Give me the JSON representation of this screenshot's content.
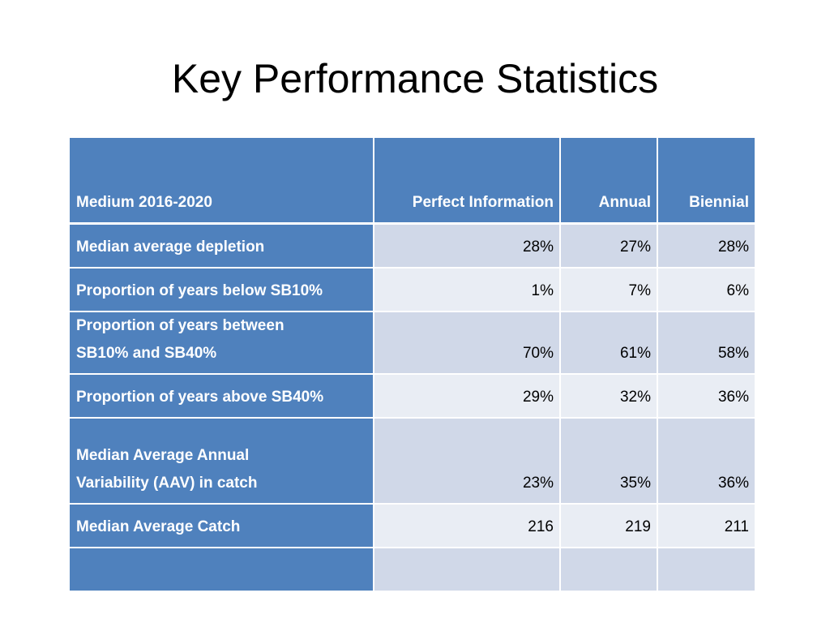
{
  "slide": {
    "title": "Key Performance Statistics"
  },
  "table": {
    "header": [
      "Medium 2016-2020",
      "Perfect Information",
      "Annual",
      "Biennial"
    ],
    "rows": [
      {
        "label": "Median average depletion",
        "values": [
          "28%",
          "27%",
          "28%"
        ]
      },
      {
        "label": "Proportion of years below SB10%",
        "values": [
          "1%",
          "7%",
          "6%"
        ]
      },
      {
        "label_lines": [
          "Proportion of years between",
          "SB10% and SB40%"
        ],
        "values": [
          "70%",
          "61%",
          "58%"
        ]
      },
      {
        "label": "Proportion of years above SB40%",
        "values": [
          "29%",
          "32%",
          "36%"
        ]
      },
      {
        "label_lines": [
          "Median Average Annual",
          "Variability (AAV) in catch"
        ],
        "values": [
          "23%",
          "35%",
          "36%"
        ]
      },
      {
        "label": "Median Average Catch",
        "values": [
          "216",
          "219",
          "211"
        ]
      },
      {
        "label": "",
        "values": [
          "",
          "",
          ""
        ]
      }
    ]
  },
  "colors": {
    "header_bg": "#4f81bd",
    "row_odd_bg": "#d0d8e8",
    "row_even_bg": "#e9edf4"
  }
}
